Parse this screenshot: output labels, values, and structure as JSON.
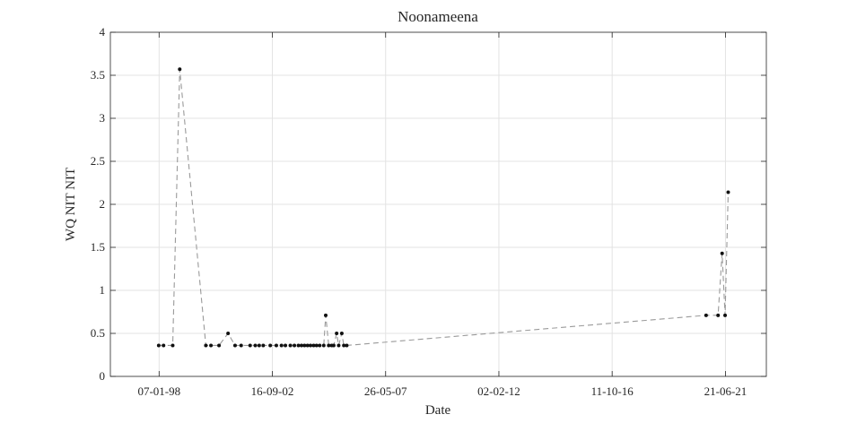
{
  "chart_data": {
    "type": "line",
    "title": "Noonameena",
    "xlabel": "Date",
    "ylabel": "WQ NIT NIT",
    "x_axis_type": "date",
    "xlim": [
      "1996-01-01",
      "2023-03-01"
    ],
    "ylim": [
      0,
      4
    ],
    "x_ticks": [
      {
        "date": "1998-01-07",
        "label": "07-01-98"
      },
      {
        "date": "2002-09-16",
        "label": "16-09-02"
      },
      {
        "date": "2007-05-26",
        "label": "26-05-07"
      },
      {
        "date": "2012-02-02",
        "label": "02-02-12"
      },
      {
        "date": "2016-10-11",
        "label": "11-10-16"
      },
      {
        "date": "2021-06-21",
        "label": "21-06-21"
      }
    ],
    "y_ticks": [
      0,
      0.5,
      1,
      1.5,
      2,
      2.5,
      3,
      3.5,
      4
    ],
    "y_tick_labels": [
      "0",
      "0.5",
      "1",
      "1.5",
      "2",
      "2.5",
      "3",
      "3.5",
      "4"
    ],
    "grid": true,
    "line_style": "dashed",
    "line_color": "#9a9a9a",
    "marker_color": "#111111",
    "series": [
      {
        "x": [
          "1998-01-01",
          "1998-03-15",
          "1998-08-01",
          "1998-11-15",
          "1999-12-15",
          "2000-03-01",
          "2000-07-01",
          "2000-11-15",
          "2001-03-01",
          "2001-06-01",
          "2001-10-15",
          "2002-01-01",
          "2002-03-01",
          "2002-05-01",
          "2002-08-15",
          "2002-11-15",
          "2003-02-01",
          "2003-04-01",
          "2003-06-15",
          "2003-08-15",
          "2003-10-15",
          "2003-12-01",
          "2004-01-15",
          "2004-03-01",
          "2004-04-15",
          "2004-06-01",
          "2004-07-15",
          "2004-09-01",
          "2004-11-01",
          "2004-12-01",
          "2005-01-15",
          "2005-03-01",
          "2005-04-01",
          "2005-05-15",
          "2005-06-15",
          "2005-08-01",
          "2005-09-01",
          "2005-10-15",
          "2020-09-01",
          "2021-03-01",
          "2021-05-01",
          "2021-06-15",
          "2021-08-01",
          "2021-09-01"
        ],
        "y": [
          0.36,
          0.36,
          0.36,
          3.57,
          0.36,
          0.36,
          0.36,
          0.5,
          0.36,
          0.36,
          0.36,
          0.36,
          0.36,
          0.36,
          0.36,
          0.36,
          0.36,
          0.36,
          0.36,
          0.36,
          0.36,
          0.36,
          0.36,
          0.36,
          0.36,
          0.36,
          0.36,
          0.36,
          0.36,
          0.71,
          0.36,
          0.36,
          0.36,
          0.5,
          0.36,
          0.5,
          0.36,
          0.36,
          0.71,
          0.71,
          1.43,
          0.71,
          2.14,
          null
        ]
      }
    ]
  }
}
